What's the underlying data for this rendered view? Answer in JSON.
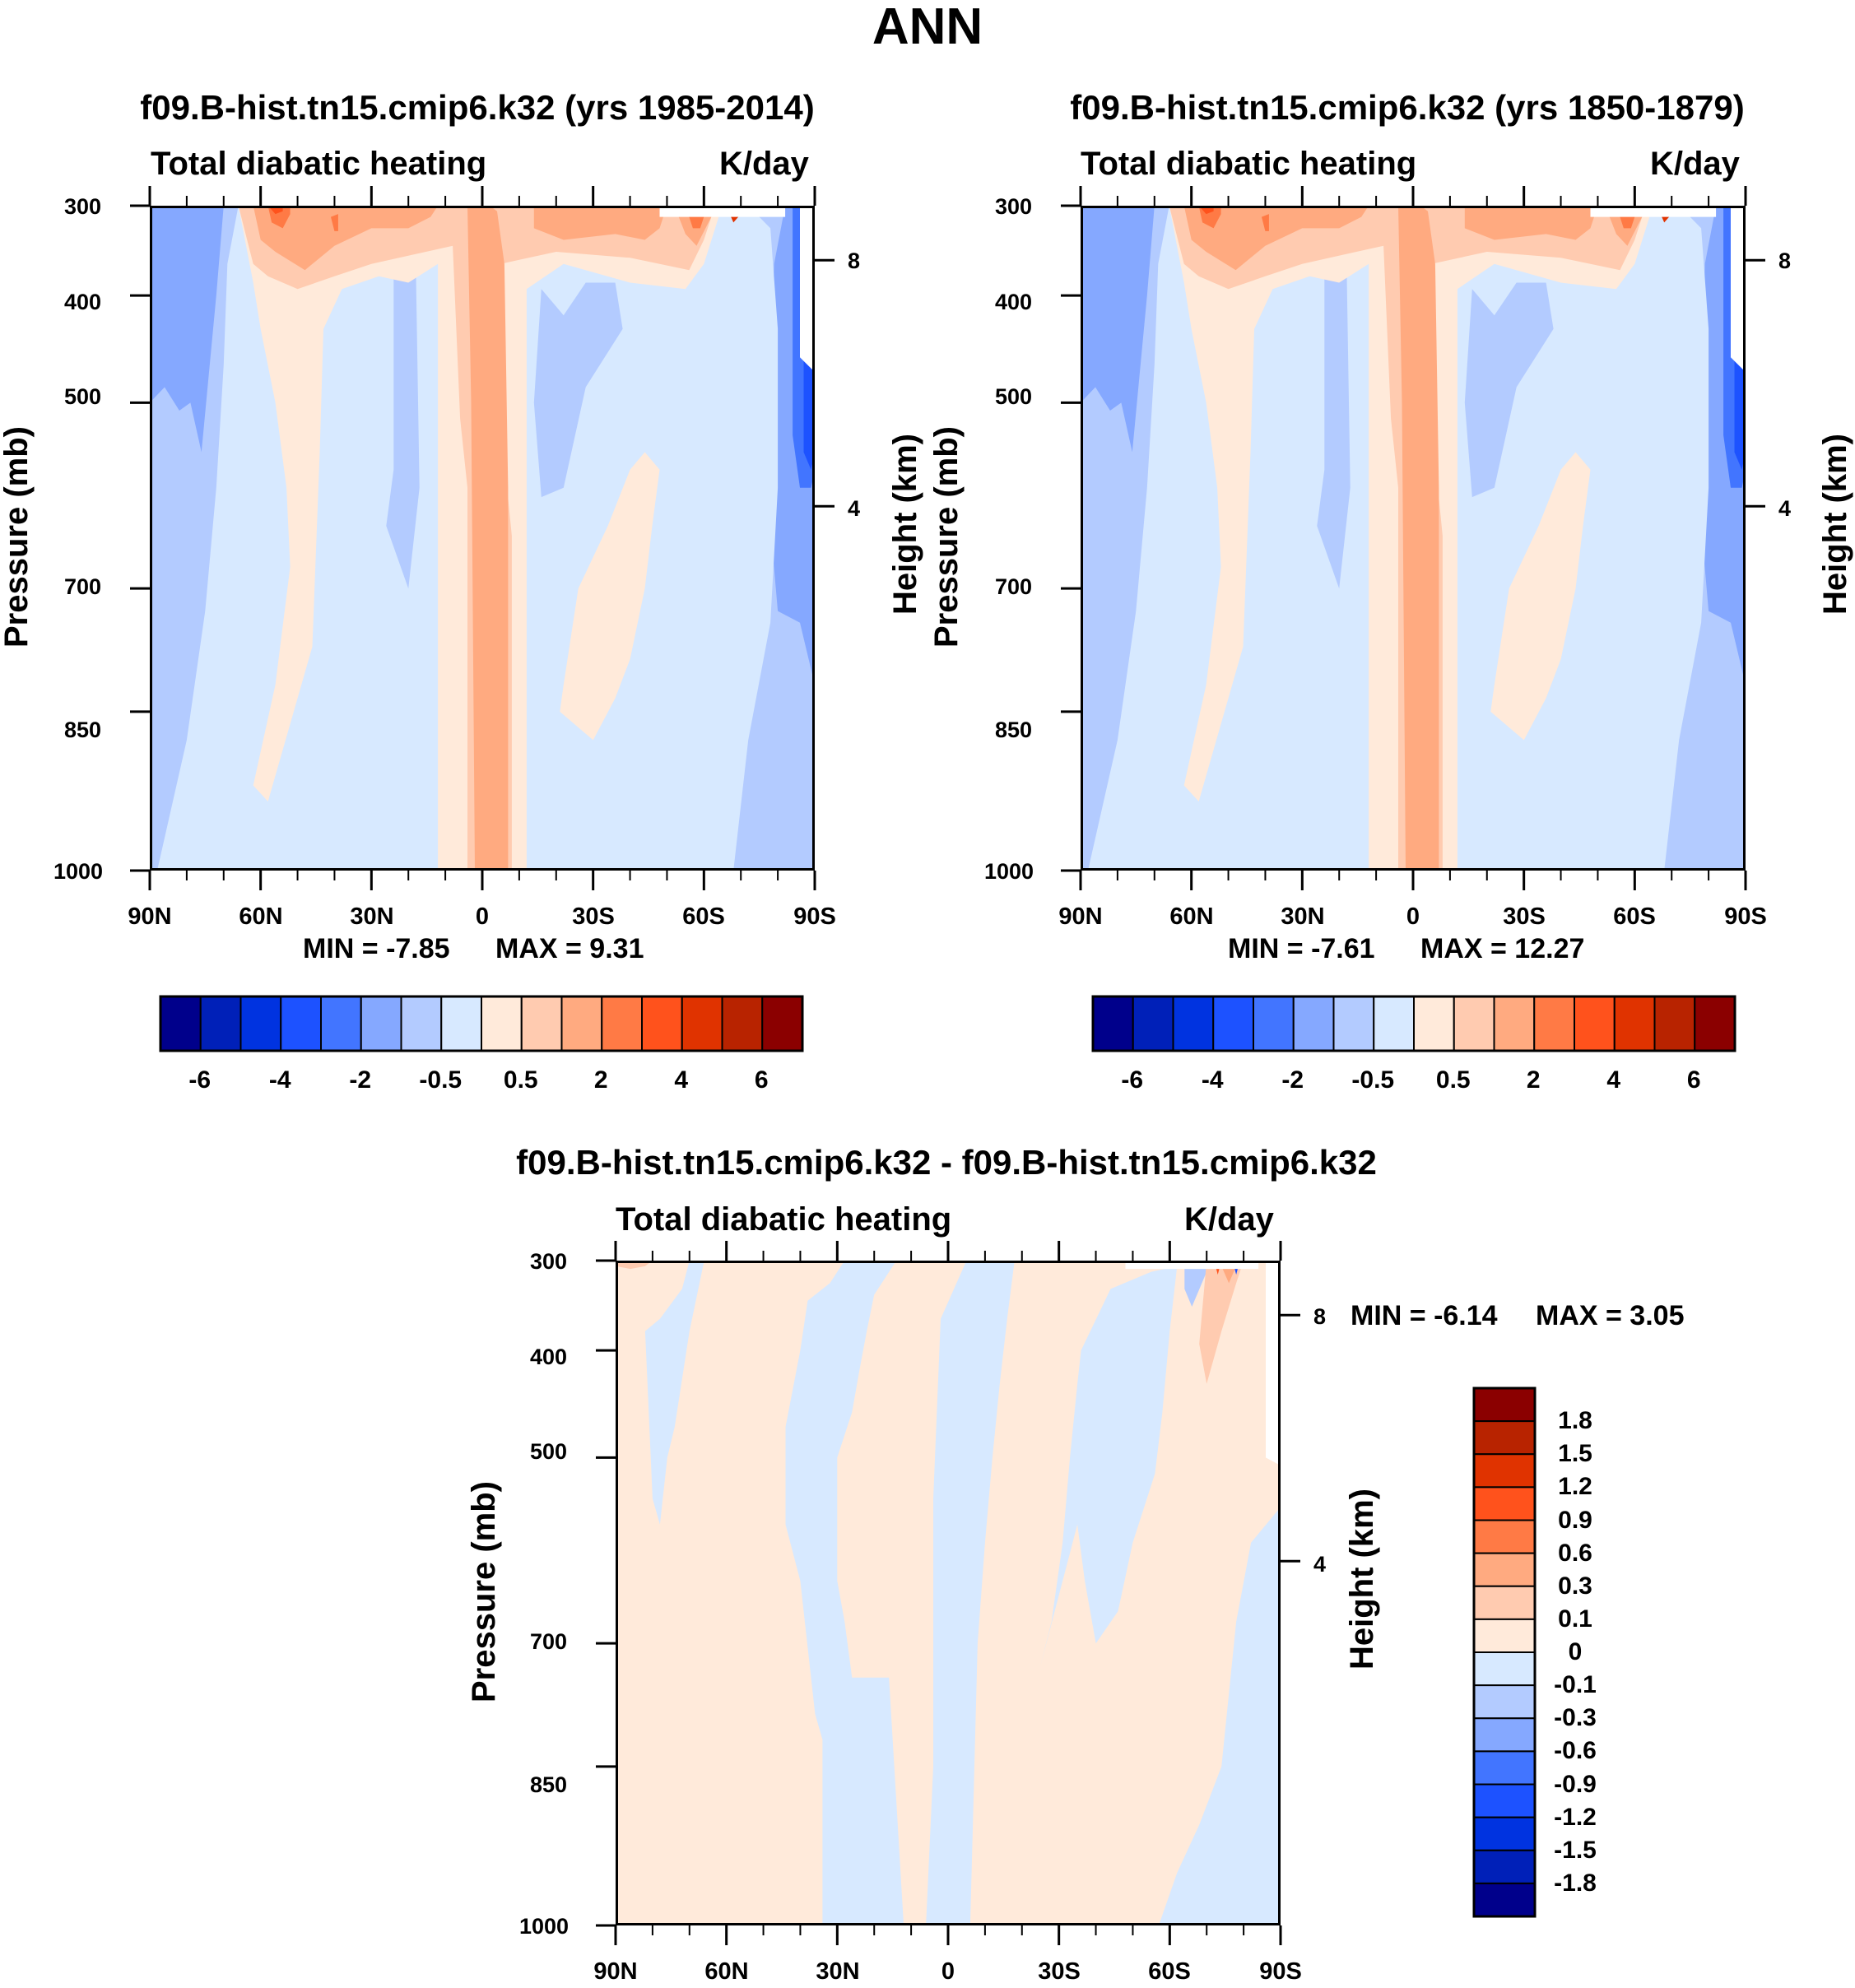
{
  "page": {
    "title": "ANN"
  },
  "chart_data": [
    {
      "type": "heatmap",
      "title": "f09.B-hist.tn15.cmip6.k32 (yrs 1985-2014)",
      "left_string": "Total diabatic heating",
      "right_string": "K/day",
      "xlabel": "",
      "ylabel": "Pressure (mb)",
      "ylabel_right": "Height (km)",
      "x_ticks": [
        "90N",
        "60N",
        "30N",
        "0",
        "30S",
        "60S",
        "90S"
      ],
      "x_range": [
        90,
        -90
      ],
      "y_ticks": [
        "300",
        "400",
        "500",
        "700",
        "850",
        "1000"
      ],
      "y_range_mb": [
        1000,
        300
      ],
      "y_right_ticks": [
        "8",
        "4"
      ],
      "min_label": "MIN =  -7.85",
      "max_label": "MAX =   9.31",
      "min": -7.85,
      "max": 9.31,
      "colorbar": {
        "orientation": "horizontal",
        "levels": [
          -7,
          -6,
          -5,
          -4,
          -3,
          -2,
          -1,
          -0.5,
          0,
          0.5,
          1,
          2,
          3,
          4,
          5,
          6,
          7
        ],
        "labels": [
          "-6",
          "-4",
          "-2",
          "-0.5",
          "0.5",
          "2",
          "4",
          "6"
        ],
        "colors": [
          "#00008b",
          "#0020b8",
          "#0033e0",
          "#1d52ff",
          "#4275ff",
          "#85a8ff",
          "#b3cbff",
          "#d7e9ff",
          "#ffeada",
          "#ffcbb0",
          "#ffaa80",
          "#ff7a45",
          "#ff521c",
          "#e03300",
          "#b82300",
          "#8b0000"
        ]
      }
    },
    {
      "type": "heatmap",
      "title": "f09.B-hist.tn15.cmip6.k32 (yrs 1850-1879)",
      "left_string": "Total diabatic heating",
      "right_string": "K/day",
      "xlabel": "",
      "ylabel": "Pressure (mb)",
      "ylabel_right": "Height (km)",
      "x_ticks": [
        "90N",
        "60N",
        "30N",
        "0",
        "30S",
        "60S",
        "90S"
      ],
      "x_range": [
        90,
        -90
      ],
      "y_ticks": [
        "300",
        "400",
        "500",
        "700",
        "850",
        "1000"
      ],
      "y_range_mb": [
        1000,
        300
      ],
      "y_right_ticks": [
        "8",
        "4"
      ],
      "min_label": "MIN =  -7.61",
      "max_label": "MAX =  12.27",
      "min": -7.61,
      "max": 12.27,
      "colorbar": {
        "orientation": "horizontal",
        "labels": [
          "-6",
          "-4",
          "-2",
          "-0.5",
          "0.5",
          "2",
          "4",
          "6"
        ],
        "colors": [
          "#00008b",
          "#0020b8",
          "#0033e0",
          "#1d52ff",
          "#4275ff",
          "#85a8ff",
          "#b3cbff",
          "#d7e9ff",
          "#ffeada",
          "#ffcbb0",
          "#ffaa80",
          "#ff7a45",
          "#ff521c",
          "#e03300",
          "#b82300",
          "#8b0000"
        ]
      }
    },
    {
      "type": "heatmap",
      "title": "f09.B-hist.tn15.cmip6.k32 - f09.B-hist.tn15.cmip6.k32",
      "left_string": "Total diabatic heating",
      "right_string": "K/day",
      "xlabel": "",
      "ylabel": "Pressure (mb)",
      "ylabel_right": "Height (km)",
      "x_ticks": [
        "90N",
        "60N",
        "30N",
        "0",
        "30S",
        "60S",
        "90S"
      ],
      "x_range": [
        90,
        -90
      ],
      "y_ticks": [
        "300",
        "400",
        "500",
        "700",
        "850",
        "1000"
      ],
      "y_range_mb": [
        1000,
        300
      ],
      "y_right_ticks": [
        "8",
        "4"
      ],
      "min_label": "MIN =  -6.14",
      "max_label": "MAX =   3.05",
      "min": -6.14,
      "max": 3.05,
      "colorbar": {
        "orientation": "vertical",
        "labels": [
          "1.8",
          "1.5",
          "1.2",
          "0.9",
          "0.6",
          "0.3",
          "0.1",
          "0",
          "-0.1",
          "-0.3",
          "-0.6",
          "-0.9",
          "-1.2",
          "-1.5",
          "-1.8"
        ],
        "colors": [
          "#8b0000",
          "#b82300",
          "#e03300",
          "#ff521c",
          "#ff7a45",
          "#ffaa80",
          "#ffcbb0",
          "#ffeada",
          "#d7e9ff",
          "#b3cbff",
          "#85a8ff",
          "#4275ff",
          "#1d52ff",
          "#0033e0",
          "#0020b8",
          "#00008b"
        ]
      }
    }
  ]
}
